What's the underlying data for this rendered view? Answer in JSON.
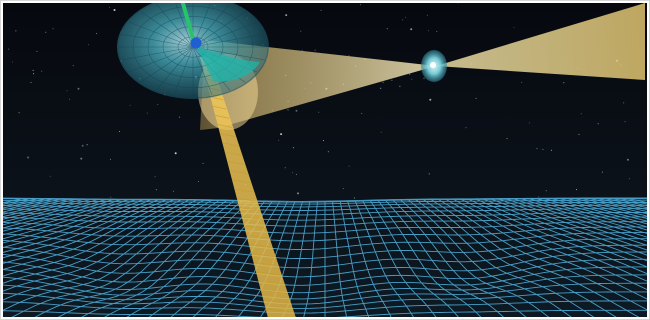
{
  "scene": {
    "subject": "",
    "colors": {
      "space": "#05070c",
      "grid": "#4fb3e0",
      "grid_glow": "#7fd4ff",
      "beam": "#f2d27a",
      "beam_core": "#fff3c0",
      "pulsar_halo": "#3aa6b8",
      "pulsar_core": "#1f5fd1",
      "jet": "#27c46a",
      "frame_border": "#c9c9c9"
    },
    "icons": {
      "large_pulsar": "sphere-icon",
      "small_pulsar": "sphere-icon"
    }
  }
}
